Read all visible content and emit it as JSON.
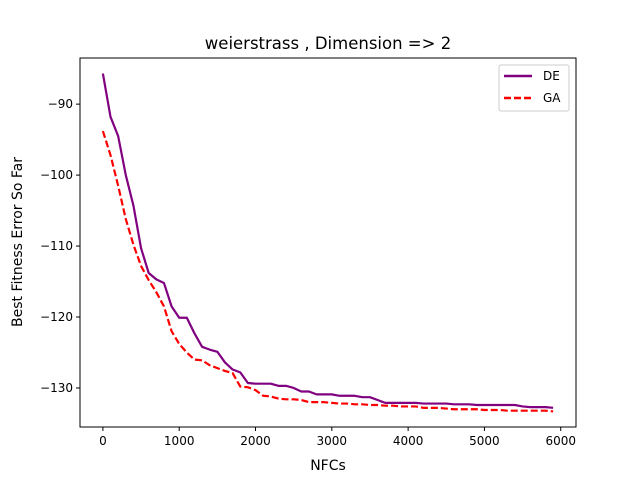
{
  "chart_data": {
    "type": "line",
    "title": "weierstrass , Dimension => 2",
    "xlabel": "NFCs",
    "ylabel": "Best Fitness Error So Far",
    "xlim": [
      -300,
      6200
    ],
    "ylim": [
      -135.5,
      -83.5
    ],
    "xticks": [
      0,
      1000,
      2000,
      3000,
      4000,
      5000,
      6000
    ],
    "yticks": [
      -90,
      -100,
      -110,
      -120,
      -130
    ],
    "xtick_labels": [
      "0",
      "1000",
      "2000",
      "3000",
      "4000",
      "5000",
      "6000"
    ],
    "ytick_labels": [
      "−90",
      "−100",
      "−110",
      "−120",
      "−130"
    ],
    "grid": false,
    "legend_position": "top-right",
    "series": [
      {
        "name": "DE",
        "color": "#800080",
        "style": "solid",
        "x": [
          0,
          100,
          200,
          300,
          400,
          500,
          600,
          700,
          800,
          900,
          1000,
          1100,
          1200,
          1300,
          1400,
          1500,
          1600,
          1700,
          1800,
          1900,
          2000,
          2100,
          2200,
          2300,
          2400,
          2500,
          2600,
          2700,
          2800,
          2900,
          3000,
          3100,
          3200,
          3300,
          3400,
          3500,
          3600,
          3700,
          3800,
          3900,
          4000,
          4100,
          4200,
          4300,
          4400,
          4500,
          4600,
          4700,
          4800,
          4900,
          5000,
          5100,
          5200,
          5300,
          5400,
          5500,
          5600,
          5700,
          5800,
          5900
        ],
        "y": [
          -85.7,
          -91.8,
          -94.5,
          -100.0,
          -104.3,
          -110.3,
          -113.8,
          -114.7,
          -115.2,
          -118.5,
          -120.1,
          -120.1,
          -122.3,
          -124.2,
          -124.6,
          -124.9,
          -126.4,
          -127.4,
          -127.8,
          -129.3,
          -129.4,
          -129.4,
          -129.4,
          -129.7,
          -129.7,
          -130.0,
          -130.5,
          -130.5,
          -130.9,
          -130.9,
          -130.9,
          -131.1,
          -131.1,
          -131.1,
          -131.3,
          -131.3,
          -131.7,
          -132.1,
          -132.1,
          -132.1,
          -132.1,
          -132.1,
          -132.2,
          -132.2,
          -132.2,
          -132.2,
          -132.3,
          -132.3,
          -132.3,
          -132.4,
          -132.4,
          -132.4,
          -132.4,
          -132.4,
          -132.4,
          -132.6,
          -132.7,
          -132.7,
          -132.7,
          -132.8
        ]
      },
      {
        "name": "GA",
        "color": "#ff0000",
        "style": "dashed",
        "x": [
          0,
          100,
          200,
          300,
          400,
          500,
          600,
          700,
          800,
          900,
          1000,
          1100,
          1200,
          1300,
          1400,
          1500,
          1600,
          1700,
          1800,
          1900,
          2000,
          2100,
          2200,
          2300,
          2400,
          2500,
          2600,
          2700,
          2800,
          2900,
          3000,
          3100,
          3200,
          3300,
          3400,
          3500,
          3600,
          3700,
          3800,
          3900,
          4000,
          4100,
          4200,
          4300,
          4400,
          4500,
          4600,
          4700,
          4800,
          4900,
          5000,
          5100,
          5200,
          5300,
          5400,
          5500,
          5600,
          5700,
          5800,
          5900
        ],
        "y": [
          -93.8,
          -97.2,
          -101.5,
          -106.2,
          -109.8,
          -112.8,
          -114.8,
          -116.5,
          -118.5,
          -122.0,
          -123.8,
          -125.0,
          -126.0,
          -126.1,
          -126.8,
          -127.2,
          -127.6,
          -127.9,
          -129.8,
          -129.9,
          -130.3,
          -131.1,
          -131.2,
          -131.5,
          -131.6,
          -131.6,
          -131.7,
          -132.0,
          -132.0,
          -132.0,
          -132.1,
          -132.2,
          -132.2,
          -132.3,
          -132.3,
          -132.4,
          -132.4,
          -132.5,
          -132.5,
          -132.6,
          -132.6,
          -132.6,
          -132.8,
          -132.8,
          -132.8,
          -132.9,
          -133.0,
          -133.0,
          -133.0,
          -133.0,
          -133.1,
          -133.1,
          -133.1,
          -133.2,
          -133.2,
          -133.2,
          -133.2,
          -133.2,
          -133.2,
          -133.3
        ]
      }
    ]
  }
}
